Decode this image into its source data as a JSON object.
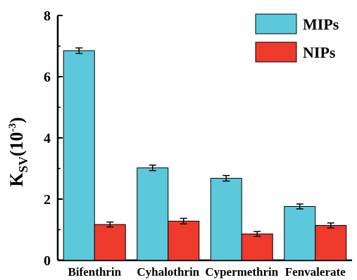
{
  "chart_data": {
    "type": "bar",
    "categories": [
      "Bifenthrin",
      "Cyhalothrin",
      "Cypermethrin",
      "Fenvalerate"
    ],
    "series": [
      {
        "name": "MIPs",
        "values": [
          6.85,
          3.02,
          2.68,
          1.76
        ],
        "errors": [
          0.09,
          0.09,
          0.09,
          0.08
        ],
        "color": "#5cc8dc"
      },
      {
        "name": "NIPs",
        "values": [
          1.17,
          1.28,
          0.86,
          1.14
        ],
        "errors": [
          0.08,
          0.09,
          0.08,
          0.08
        ],
        "color": "#ee3a2d"
      }
    ],
    "ylabel": {
      "main": "K",
      "sub": "SV",
      "open": "(10",
      "sup": "-3",
      "close": ")"
    },
    "ylim": [
      0,
      8
    ],
    "yticks": [
      "0",
      "2",
      "4",
      "6",
      "8"
    ],
    "legend_position": "top-right",
    "grid": false
  }
}
